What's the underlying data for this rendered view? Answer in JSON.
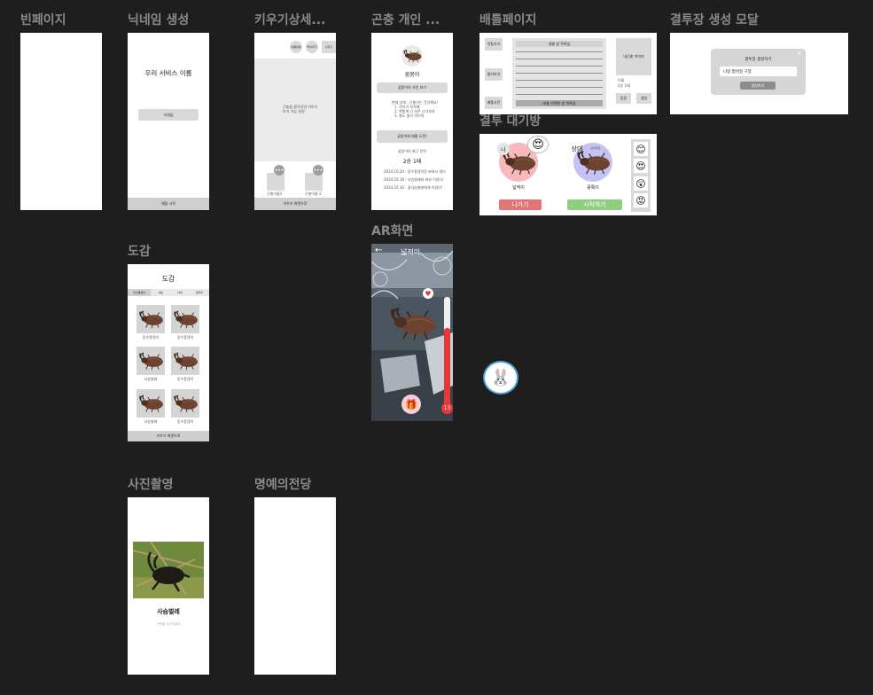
{
  "frames": {
    "blank": {
      "title": "빈페이지"
    },
    "nickname": {
      "title": "닉네임 생성",
      "service_name": "우리 서비스 이름",
      "button": "닉네임",
      "footer": "채집 시작"
    },
    "raise": {
      "title": "키우기상세...",
      "chips": [
        "이름변경",
        "먹이주기",
        "꾸미기"
      ],
      "center_text": "곤충을 클릭하면 이야기 보기 기능 설명",
      "slots": [
        "곤충이름1",
        "곤충이름 2"
      ],
      "footer": "키우기 화면으로"
    },
    "insect": {
      "title": "곤충 개인 ...",
      "name": "꿈뭉이",
      "photo_button": "꿈뭉이의 사진 보기",
      "questions": [
        "현재 상태 : 곤충이는 건강해요!",
        "1. 먹이가 부족해",
        "2. 햇빛에 너 자주 나가보자",
        "3. 물도 많이 먹어줘"
      ],
      "battle_button": "꿈뭉이와 배틀 도전!",
      "record_label": "꿈뭉이의 최근 전적",
      "record": "2승 1패",
      "history": [
        "2024.10.20 : 장수풍뎅이랑 싸워서 졌다",
        "2024.10.18 : 사슴벌레와 싸워 이겼다!",
        "2024.10.16 : 꽃사슴벌레에게 이겼다!"
      ]
    },
    "battle": {
      "title": "배틀페이지",
      "left_buttons": [
        "직접가기",
        "둘러보기",
        "배틀사전"
      ],
      "list_header": "대충 방 목록임",
      "list_footer": "대충 선택한 방 목록임",
      "my_image": "내곤충 이미지",
      "stats": [
        "이름",
        "2승 1패"
      ],
      "actions": [
        "입장",
        "생성"
      ]
    },
    "modal": {
      "title": "결투장 생성 모달",
      "close": "X",
      "heading": "결투장 생성하기",
      "input_value": "나랑 짭쉬일 구함",
      "submit": "생성하기"
    },
    "waiting": {
      "title": "결투 대기방",
      "me_label": "나",
      "opp_label": "상대",
      "me_name": "넓적이",
      "opp_name": "뭉툭이",
      "opp_badge": "준비완료",
      "exit": "나가기",
      "start": "시작하기",
      "emojis": [
        "😊",
        "😍",
        "😲",
        "😡"
      ]
    },
    "dex": {
      "title": "도감",
      "heading": "도감",
      "tabs": [
        "장수풍뎅이",
        "사슴",
        "나비",
        "잠자리"
      ],
      "items": [
        "장수풍뎅이",
        "장수풍뎅이",
        "사슴벌레",
        "장수풍뎅이",
        "사슴벌레",
        "장수풍뎅이"
      ],
      "footer": "키우기 화면으로"
    },
    "ar": {
      "title": "AR화면",
      "name": "넓적이",
      "hp": "13"
    },
    "photo": {
      "title": "사진촬영",
      "name": "사슴벌레",
      "sub": "곤충을 추가하세요"
    },
    "fame": {
      "title": "명예의전당"
    }
  },
  "colors": {
    "canvas": "#1e1e1e",
    "beetle": "#5b3a29",
    "exit_red": "#e57373",
    "start_green": "#8fce7f",
    "me_pink": "#f8b9bd",
    "opp_violet": "#c3c3f4"
  }
}
